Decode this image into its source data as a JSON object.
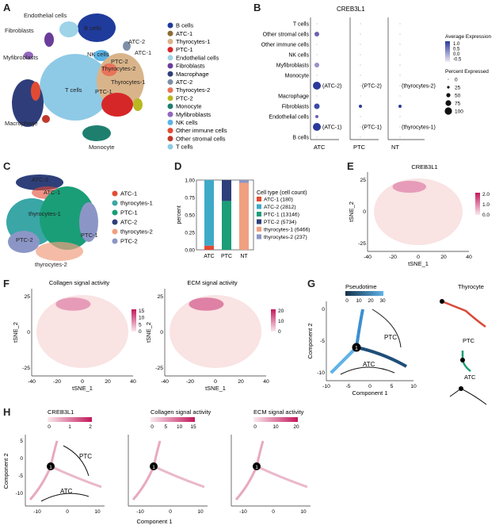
{
  "panels": {
    "A": "A",
    "B": "B",
    "C": "C",
    "D": "D",
    "E": "E",
    "F": "F",
    "G": "G",
    "H": "H"
  },
  "panelA": {
    "legend": [
      {
        "label": "B cells",
        "color": "#1f3b9c"
      },
      {
        "label": "ATC-1",
        "color": "#8c6d2f"
      },
      {
        "label": "Thyrocytes-1",
        "color": "#d9b48a"
      },
      {
        "label": "PTC-1",
        "color": "#d62728"
      },
      {
        "label": "Endothelial cells",
        "color": "#9ed3e8"
      },
      {
        "label": "Fibroblasts",
        "color": "#6a3d9a"
      },
      {
        "label": "Macrophage",
        "color": "#2f3e7a"
      },
      {
        "label": "ATC-2",
        "color": "#7f8fa6"
      },
      {
        "label": "Thyrocytes-2",
        "color": "#e8745a"
      },
      {
        "label": "PTC-2",
        "color": "#b8b820"
      },
      {
        "label": "Monocyte",
        "color": "#1f7f6e"
      },
      {
        "label": "Myfibroblasts",
        "color": "#9467bd"
      },
      {
        "label": "NK cells",
        "color": "#5ab4e5"
      },
      {
        "label": "Other immune cells",
        "color": "#e34a33"
      },
      {
        "label": "Other stromal cells",
        "color": "#c0392b"
      },
      {
        "label": "T cells",
        "color": "#8ecae6"
      }
    ],
    "cluster_labels": {
      "endothelial": "Endothelial cells",
      "b_cells": "B cells",
      "fibroblasts": "Fibroblasts",
      "atc2": "ATC-2",
      "atc1": "ATC-1",
      "myfibroblasts": "Myfibroblasts",
      "nk": "NK cells",
      "ptc2": "PTC-2",
      "thy2": "Thyrocytes-2",
      "thy1": "Thyrocytes-1",
      "tcells": "T cells",
      "ptc1": "PTC-1",
      "macrophage": "Macrophage",
      "monocyte": "Monocyte"
    }
  },
  "panelB": {
    "title": "CREB3L1",
    "rows": [
      "T cells",
      "Other stromal cells",
      "Other immune cells",
      "NK cells",
      "Myfibroblasts",
      "Monocyte",
      "(ATC-2)",
      "Macrophage",
      "Fibroblasts",
      "Endothelial cells",
      "(ATC-1)",
      "B cells"
    ],
    "row_labels": [
      "T cells",
      "Other stromal cells",
      "Other immune cells",
      "NK cells",
      "Myfibroblasts",
      "Monocyte",
      "",
      "Macrophage",
      "Fibroblasts",
      "Endothelial cells",
      "",
      "B cells"
    ],
    "columns": [
      "ATC",
      "PTC",
      "NT"
    ],
    "annotations": {
      "atc2": "(ATC-2)",
      "ptc2": "(PTC-2)",
      "thy2": "(thyrocytes-2)",
      "atc1": "(ATC-1)",
      "ptc1": "(PTC-1)",
      "thy1": "(thyrocytes-1)"
    },
    "dots": [
      {
        "row": 1,
        "col": 0,
        "size": 3,
        "color": "#6f5fb0"
      },
      {
        "row": 4,
        "col": 0,
        "size": 3,
        "color": "#9b8dcc"
      },
      {
        "row": 6,
        "col": 0,
        "size": 5,
        "color": "#2b3a9a"
      },
      {
        "row": 8,
        "col": 0,
        "size": 3.5,
        "color": "#3a4aa8"
      },
      {
        "row": 8,
        "col": 1,
        "size": 2,
        "color": "#2b3a9a"
      },
      {
        "row": 8,
        "col": 2,
        "size": 2,
        "color": "#2b3a9a"
      },
      {
        "row": 9,
        "col": 0,
        "size": 2,
        "color": "#6f5fb0"
      },
      {
        "row": 10,
        "col": 0,
        "size": 5,
        "color": "#2b3a9a"
      }
    ],
    "legend_expr_title": "Average Expression",
    "legend_expr_ticks": [
      "1.0",
      "0.5",
      "0.0",
      "-0.5"
    ],
    "legend_pct_title": "Percent Expressed",
    "legend_pct_ticks": [
      "0",
      "25",
      "50",
      "75",
      "100"
    ]
  },
  "panelC": {
    "legend": [
      {
        "label": "ATC-1",
        "color": "#e34a33"
      },
      {
        "label": "thyrocytes-1",
        "color": "#3aa6a6"
      },
      {
        "label": "PTC-1",
        "color": "#1a9e77"
      },
      {
        "label": "ATC-2",
        "color": "#2e3f7a"
      },
      {
        "label": "thyrocytes-2",
        "color": "#f0a080"
      },
      {
        "label": "PTC-2",
        "color": "#8c96c6"
      }
    ],
    "cluster_labels": {
      "atc2": "ATC-2",
      "atc1": "ATC-1",
      "thy1": "thyrocytes-1",
      "ptc1": "PTC-1",
      "ptc2": "PTC-2",
      "thy2": "thyrocytes-2"
    }
  },
  "chart_data": [
    {
      "type": "bar",
      "title": "",
      "xlabel": "",
      "ylabel": "percent",
      "categories": [
        "ATC",
        "PTC",
        "NT"
      ],
      "ylim": [
        0,
        1
      ],
      "yticks": [
        "0.00",
        "0.25",
        "0.50",
        "0.75",
        "1.00"
      ],
      "legend_title": "Cell type (cell count)",
      "series": [
        {
          "name": "ATC-1 (180)",
          "color": "#e34a33",
          "values": [
            0.06,
            0.0,
            0.0
          ]
        },
        {
          "name": "ATC-2 (2812)",
          "color": "#3fa9c8",
          "values": [
            0.94,
            0.0,
            0.0
          ]
        },
        {
          "name": "PTC-1 (13146)",
          "color": "#1a9e77",
          "values": [
            0.0,
            0.7,
            0.0
          ]
        },
        {
          "name": "PTC-2 (5734)",
          "color": "#2e3f7a",
          "values": [
            0.0,
            0.3,
            0.0
          ]
        },
        {
          "name": "thyrocytes-1 (6466)",
          "color": "#f0a080",
          "values": [
            0.0,
            0.0,
            0.96
          ]
        },
        {
          "name": "thyrocytes-2 (237)",
          "color": "#8c96c6",
          "values": [
            0.0,
            0.0,
            0.04
          ]
        }
      ]
    }
  ],
  "panelE": {
    "title": "CREB3L1",
    "xlabel": "tSNE_1",
    "ylabel": "tSNE_2",
    "xticks": [
      "-40",
      "-20",
      "0",
      "20",
      "40"
    ],
    "yticks": [
      "25",
      "0",
      "-25"
    ],
    "scale_ticks": [
      "2.0",
      "1.0",
      "0.0"
    ]
  },
  "panelF": {
    "left_title": "Collagen signal activity",
    "right_title": "ECM signal activity",
    "xlabel": "tSNE_1",
    "ylabel": "tSNE_2",
    "xticks": [
      "-40",
      "-20",
      "0",
      "20",
      "40"
    ],
    "yticks": [
      "25",
      "0",
      "-25"
    ],
    "left_scale": [
      "15",
      "10",
      "5",
      "0"
    ],
    "right_scale": [
      "20",
      "10",
      "0"
    ]
  },
  "panelG": {
    "pseudotime_title": "Pseudotime",
    "pseudotime_ticks": [
      "0",
      "10",
      "20",
      "30"
    ],
    "xlabel": "Component 1",
    "ylabel": "Component 2",
    "xticks": [
      "-10",
      "-5",
      "0",
      "5",
      "10"
    ],
    "yticks": [
      "0",
      "-5",
      "-10"
    ],
    "ptc": "PTC",
    "atc": "ATC",
    "node": "1",
    "side_labels": {
      "thyrocyte": "Thyrocyte",
      "ptc": "PTC",
      "atc": "ATC"
    }
  },
  "panelH": {
    "titles": [
      "CREB3L1",
      "Collagen signal activity",
      "ECM signal activity"
    ],
    "scales": [
      [
        "0",
        "1",
        "2"
      ],
      [
        "0",
        "5",
        "10",
        "15"
      ],
      [
        "0",
        "10",
        "20"
      ]
    ],
    "xlabel": "Component 1",
    "ylabel": "Component 2",
    "xticks": [
      "-10",
      "0",
      "10"
    ],
    "yticks": [
      "5",
      "0",
      "-5",
      "-10"
    ],
    "ptc": "PTC",
    "atc": "ATC",
    "node": "1"
  }
}
